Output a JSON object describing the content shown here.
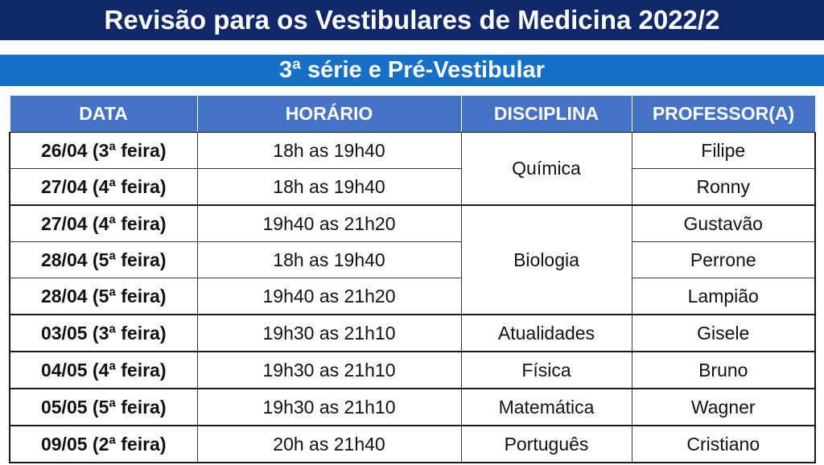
{
  "title": "Revisão para os Vestibulares de Medicina 2022/2",
  "subtitle": "3ª série e Pré-Vestibular",
  "headers": {
    "date": "DATA",
    "time": "HORÁRIO",
    "subject": "DISCIPLINA",
    "teacher": "PROFESSOR(A)"
  },
  "rows": [
    {
      "date": "26/04 (3ª feira)",
      "time": "18h as 19h40",
      "teacher": "Filipe"
    },
    {
      "date": "27/04 (4ª feira)",
      "time": "18h as 19h40",
      "teacher": "Ronny"
    },
    {
      "date": "27/04 (4ª feira)",
      "time": "19h40 as 21h20",
      "teacher": "Gustavão"
    },
    {
      "date": "28/04 (5ª feira)",
      "time": "18h as 19h40",
      "teacher": "Perrone"
    },
    {
      "date": "28/04 (5ª feira)",
      "time": "19h40 as 21h20",
      "teacher": "Lampião"
    },
    {
      "date": "03/05 (3ª feira)",
      "time": "19h30 as 21h10",
      "teacher": "Gisele"
    },
    {
      "date": "04/05 (4ª feira)",
      "time": "19h30 as 21h10",
      "teacher": "Bruno"
    },
    {
      "date": "05/05 (5ª feira)",
      "time": "19h30 as 21h10",
      "teacher": "Wagner"
    },
    {
      "date": "09/05 (2ª feira)",
      "time": "20h as 21h40",
      "teacher": "Cristiano"
    }
  ],
  "subjects": [
    "Química",
    "Biologia",
    "Atualidades",
    "Física",
    "Matemática",
    "Português"
  ]
}
